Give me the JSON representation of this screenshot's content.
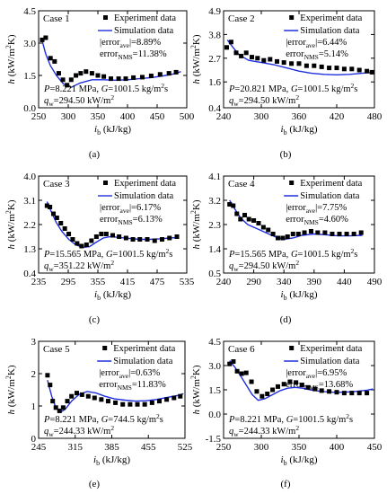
{
  "panels": [
    {
      "case_label": "Case 1",
      "letter": "(a)",
      "legend": {
        "experiment": "Experiment data",
        "simulation": "Simulation data"
      },
      "error_avg": "8.89%",
      "error_nms": "11.38%",
      "conditions_line1": "P=8.221 MPa, G=1001.5 kg/m²s",
      "conditions_line2": "q_w=294.50 kW/m²"
    },
    {
      "case_label": "Case 2",
      "letter": "(b)",
      "legend": {
        "experiment": "Experiment data",
        "simulation": "Simulation data"
      },
      "error_avg": "6.44%",
      "error_nms": "5.14%",
      "conditions_line1": "P=20.821 MPa, G=1001.5 kg/m²s",
      "conditions_line2": "q_w=294.50 kW/m²"
    },
    {
      "case_label": "Case 3",
      "letter": "(c)",
      "legend": {
        "experiment": "Experiment data",
        "simulation": "Simulation data"
      },
      "error_avg": "6.17%",
      "error_nms": "6.13%",
      "conditions_line1": "P=15.565 MPa, G=1001.5 kg/m²s",
      "conditions_line2": "q_w=351.22 kW/m²"
    },
    {
      "case_label": "Case 4",
      "letter": "(d)",
      "legend": {
        "experiment": "Experiment data",
        "simulation": "Simulation data"
      },
      "error_avg": "7.75%",
      "error_nms": "4.60%",
      "conditions_line1": "P=15.565 MPa, G=1001.5 kg/m²s",
      "conditions_line2": "q_w=294.50 kW/m²"
    },
    {
      "case_label": "Case 5",
      "letter": "(e)",
      "legend": {
        "experiment": "Experiment data",
        "simulation": "Simulation data"
      },
      "error_avg": "0.63%",
      "error_nms": "11.83%",
      "conditions_line1": "P=8.221 MPa, G=744.5 kg/m²s",
      "conditions_line2": "q_w=244.33 kW/m²"
    },
    {
      "case_label": "Case 6",
      "letter": "(f)",
      "legend": {
        "experiment": "Experiment data",
        "simulation": "Simulation data"
      },
      "error_avg": "6.95%",
      "error_nms": "13.68%",
      "conditions_line1": "P=8.221 MPa, G=1001.5 kg/m²s",
      "conditions_line2": "q_w=244.33 kW/m²"
    }
  ],
  "chart_data": [
    {
      "type": "scatter",
      "title": "Case 1",
      "xlabel": "i_b (kJ/kg)",
      "ylabel": "h (kW/m²K)",
      "xlim": [
        250,
        500
      ],
      "ylim": [
        0,
        4.5
      ],
      "xticks": [
        250,
        300,
        350,
        400,
        450,
        500
      ],
      "yticks": [
        0.0,
        1.5,
        3.0,
        4.5
      ],
      "ytick_labels": [
        "0.0",
        "1.5",
        "3.0",
        "4.5"
      ],
      "series": [
        {
          "name": "Experiment data",
          "type": "scatter",
          "x": [
            256,
            262,
            270,
            277,
            284,
            291,
            298,
            305,
            313,
            321,
            330,
            340,
            350,
            360,
            372,
            385,
            397,
            410,
            425,
            440,
            455,
            470,
            482
          ],
          "y": [
            3.15,
            3.25,
            2.3,
            2.15,
            1.6,
            1.3,
            1.05,
            1.3,
            1.5,
            1.6,
            1.68,
            1.6,
            1.5,
            1.45,
            1.35,
            1.35,
            1.35,
            1.4,
            1.42,
            1.48,
            1.55,
            1.6,
            1.65
          ]
        },
        {
          "name": "Simulation data",
          "type": "line",
          "x": [
            256,
            262,
            270,
            280,
            292,
            305,
            320,
            340,
            360,
            380,
            400,
            420,
            440,
            460,
            480,
            490
          ],
          "y": [
            3.1,
            2.5,
            1.95,
            1.5,
            1.1,
            0.95,
            1.15,
            1.3,
            1.3,
            1.28,
            1.3,
            1.35,
            1.4,
            1.48,
            1.58,
            1.68
          ]
        }
      ]
    },
    {
      "type": "scatter",
      "title": "Case 2",
      "xlabel": "i_b (kJ/kg)",
      "ylabel": "h (kW/m²K)",
      "xlim": [
        240,
        480
      ],
      "ylim": [
        0.4,
        4.9
      ],
      "xticks": [
        240,
        300,
        360,
        420,
        480
      ],
      "yticks": [
        0.4,
        1.6,
        2.7,
        3.8,
        4.9
      ],
      "ytick_labels": [
        "0.4",
        "1.6",
        "2.7",
        "3.8",
        "4.9"
      ],
      "series": [
        {
          "name": "Experiment data",
          "type": "scatter",
          "x": [
            245,
            252,
            260,
            268,
            276,
            285,
            294,
            304,
            314,
            325,
            336,
            348,
            360,
            372,
            384,
            396,
            408,
            420,
            432,
            444,
            456,
            468,
            476
          ],
          "y": [
            3.2,
            3.45,
            2.95,
            2.8,
            2.95,
            2.75,
            2.7,
            2.6,
            2.65,
            2.55,
            2.5,
            2.45,
            2.45,
            2.35,
            2.35,
            2.3,
            2.25,
            2.25,
            2.2,
            2.2,
            2.15,
            2.1,
            2.05
          ]
        },
        {
          "name": "Simulation data",
          "type": "line",
          "x": [
            246,
            255,
            265,
            280,
            300,
            320,
            340,
            360,
            380,
            400,
            420,
            440,
            460,
            478
          ],
          "y": [
            3.55,
            3.2,
            2.85,
            2.6,
            2.5,
            2.4,
            2.25,
            2.1,
            2.0,
            1.95,
            1.93,
            1.95,
            2.0,
            2.05
          ]
        }
      ]
    },
    {
      "type": "scatter",
      "title": "Case 3",
      "xlabel": "i_b (kJ/kg)",
      "ylabel": "h (kW/m²K)",
      "xlim": [
        235,
        535
      ],
      "ylim": [
        0.4,
        4.0
      ],
      "xticks": [
        235,
        295,
        355,
        415,
        475,
        535
      ],
      "yticks": [
        0.4,
        1.3,
        2.2,
        3.1,
        4.0
      ],
      "ytick_labels": [
        "0.4",
        "1.3",
        "2.2",
        "3.1",
        "4.0"
      ],
      "series": [
        {
          "name": "Experiment data",
          "type": "scatter",
          "x": [
            252,
            258,
            265,
            272,
            280,
            288,
            296,
            304,
            313,
            322,
            332,
            342,
            352,
            362,
            372,
            385,
            398,
            412,
            426,
            440,
            455,
            470,
            485,
            500,
            515
          ],
          "y": [
            2.9,
            2.85,
            2.6,
            2.45,
            2.25,
            2.05,
            1.85,
            1.65,
            1.5,
            1.4,
            1.45,
            1.6,
            1.75,
            1.85,
            1.85,
            1.8,
            1.75,
            1.7,
            1.65,
            1.65,
            1.65,
            1.6,
            1.65,
            1.7,
            1.75
          ]
        },
        {
          "name": "Simulation data",
          "type": "line",
          "x": [
            252,
            260,
            270,
            282,
            296,
            310,
            324,
            338,
            352,
            366,
            380,
            400,
            420,
            440,
            460,
            480,
            500,
            515
          ],
          "y": [
            3.05,
            2.7,
            2.3,
            1.95,
            1.65,
            1.45,
            1.35,
            1.38,
            1.55,
            1.7,
            1.75,
            1.72,
            1.68,
            1.65,
            1.65,
            1.67,
            1.7,
            1.72
          ]
        }
      ]
    },
    {
      "type": "scatter",
      "title": "Case 4",
      "xlabel": "i_b (kJ/kg)",
      "ylabel": "h (kW/m²K)",
      "xlim": [
        240,
        490
      ],
      "ylim": [
        0.5,
        4.1
      ],
      "xticks": [
        240,
        290,
        340,
        390,
        440,
        490
      ],
      "yticks": [
        0.5,
        1.4,
        2.3,
        3.2,
        4.1
      ],
      "ytick_labels": [
        "0.5",
        "1.4",
        "2.3",
        "3.2",
        "4.1"
      ],
      "series": [
        {
          "name": "Experiment data",
          "type": "scatter",
          "x": [
            250,
            256,
            262,
            268,
            275,
            282,
            290,
            298,
            306,
            314,
            322,
            330,
            338,
            346,
            355,
            364,
            374,
            385,
            396,
            408,
            420,
            432,
            444,
            456,
            468
          ],
          "y": [
            3.05,
            3.0,
            2.7,
            2.5,
            2.65,
            2.5,
            2.45,
            2.35,
            2.2,
            2.1,
            1.95,
            1.8,
            1.8,
            1.85,
            1.95,
            1.95,
            2.0,
            2.05,
            2.0,
            2.0,
            1.95,
            1.95,
            1.95,
            1.95,
            2.0
          ]
        },
        {
          "name": "Simulation data",
          "type": "line",
          "x": [
            250,
            258,
            268,
            280,
            295,
            310,
            325,
            340,
            355,
            370,
            390,
            410,
            430,
            450,
            470
          ],
          "y": [
            3.2,
            2.9,
            2.55,
            2.3,
            2.15,
            2.0,
            1.85,
            1.75,
            1.8,
            1.9,
            1.95,
            1.92,
            1.88,
            1.88,
            1.9
          ]
        }
      ]
    },
    {
      "type": "scatter",
      "title": "Case 5",
      "xlabel": "i_b (kJ/kg)",
      "ylabel": "h (kW/m²K)",
      "xlim": [
        245,
        525
      ],
      "ylim": [
        0,
        3
      ],
      "xticks": [
        245,
        315,
        385,
        455,
        525
      ],
      "yticks": [
        0,
        1,
        2,
        3
      ],
      "ytick_labels": [
        "0",
        "1",
        "2",
        "3"
      ],
      "series": [
        {
          "name": "Experiment data",
          "type": "scatter",
          "x": [
            262,
            267,
            272,
            278,
            285,
            292,
            300,
            308,
            318,
            328,
            340,
            352,
            365,
            378,
            392,
            406,
            420,
            434,
            448,
            462,
            476,
            490,
            504,
            516
          ],
          "y": [
            1.95,
            1.65,
            1.15,
            0.95,
            0.85,
            0.95,
            1.15,
            1.3,
            1.4,
            1.35,
            1.3,
            1.25,
            1.2,
            1.15,
            1.1,
            1.05,
            1.05,
            1.05,
            1.05,
            1.1,
            1.15,
            1.2,
            1.25,
            1.3
          ]
        },
        {
          "name": "Simulation data",
          "type": "line",
          "x": [
            262,
            270,
            278,
            286,
            296,
            308,
            322,
            338,
            355,
            372,
            390,
            410,
            430,
            450,
            470,
            490,
            510,
            522
          ],
          "y": [
            1.8,
            1.3,
            0.95,
            0.8,
            0.9,
            1.15,
            1.35,
            1.45,
            1.4,
            1.3,
            1.22,
            1.18,
            1.15,
            1.16,
            1.2,
            1.26,
            1.32,
            1.38
          ]
        }
      ]
    },
    {
      "type": "scatter",
      "title": "Case 6",
      "xlabel": "i_b (kJ/kg)",
      "ylabel": "h (kW/m²K)",
      "xlim": [
        250,
        450
      ],
      "ylim": [
        -1.5,
        4.5
      ],
      "xticks": [
        250,
        300,
        350,
        400,
        450
      ],
      "yticks": [
        -1.5,
        0.0,
        1.5,
        3.0,
        4.5
      ],
      "ytick_labels": [
        "-1.5",
        "0.0",
        "1.5",
        "3.0",
        "4.5"
      ],
      "series": [
        {
          "name": "Experiment data",
          "type": "scatter",
          "x": [
            258,
            263,
            268,
            274,
            280,
            287,
            294,
            301,
            308,
            315,
            322,
            330,
            338,
            346,
            354,
            362,
            371,
            380,
            390,
            400,
            410,
            420,
            430,
            440
          ],
          "y": [
            3.1,
            3.25,
            2.65,
            2.5,
            2.55,
            2.0,
            1.4,
            1.1,
            1.25,
            1.5,
            1.7,
            1.85,
            2.0,
            1.95,
            1.8,
            1.65,
            1.55,
            1.45,
            1.4,
            1.35,
            1.3,
            1.3,
            1.3,
            1.3
          ]
        },
        {
          "name": "Simulation data",
          "type": "line",
          "x": [
            258,
            265,
            272,
            280,
            288,
            296,
            305,
            315,
            325,
            335,
            345,
            355,
            365,
            380,
            395,
            410,
            425,
            440,
            448
          ],
          "y": [
            3.3,
            2.9,
            2.4,
            1.8,
            1.2,
            0.85,
            0.95,
            1.2,
            1.45,
            1.6,
            1.65,
            1.6,
            1.5,
            1.4,
            1.35,
            1.35,
            1.4,
            1.48,
            1.55
          ]
        }
      ]
    }
  ]
}
